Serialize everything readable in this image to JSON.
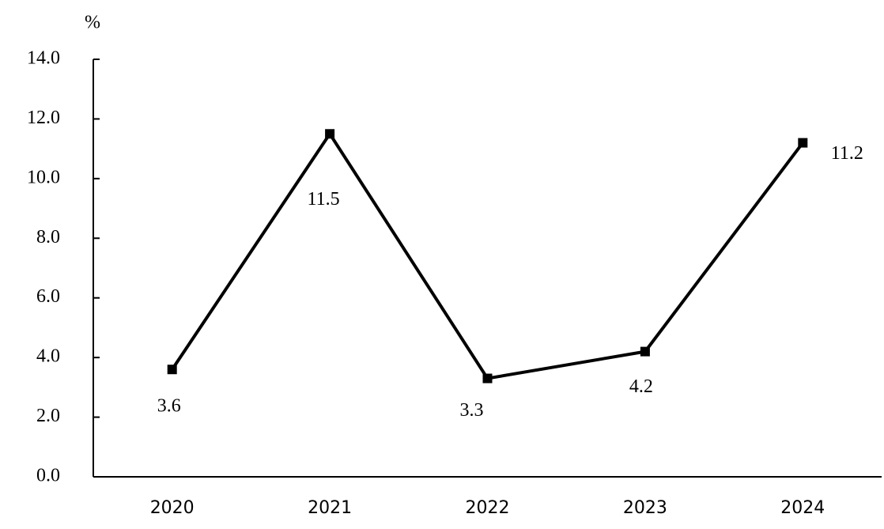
{
  "chart_data": {
    "type": "line",
    "y_label": "%",
    "categories": [
      "2020",
      "2021",
      "2022",
      "2023",
      "2024"
    ],
    "values": [
      3.6,
      11.5,
      3.3,
      4.2,
      11.2
    ],
    "color": "#000000",
    "ylim": [
      0,
      14
    ],
    "yticks": [
      {
        "value": 0,
        "label": "0.0"
      },
      {
        "value": 2,
        "label": "2.0"
      },
      {
        "value": 4,
        "label": "4.0"
      },
      {
        "value": 6,
        "label": "6.0"
      },
      {
        "value": 8,
        "label": "8.0"
      },
      {
        "value": 10,
        "label": "10.0"
      },
      {
        "value": 12,
        "label": "12.0"
      },
      {
        "value": 14,
        "label": "14.0"
      }
    ],
    "grid": false
  }
}
